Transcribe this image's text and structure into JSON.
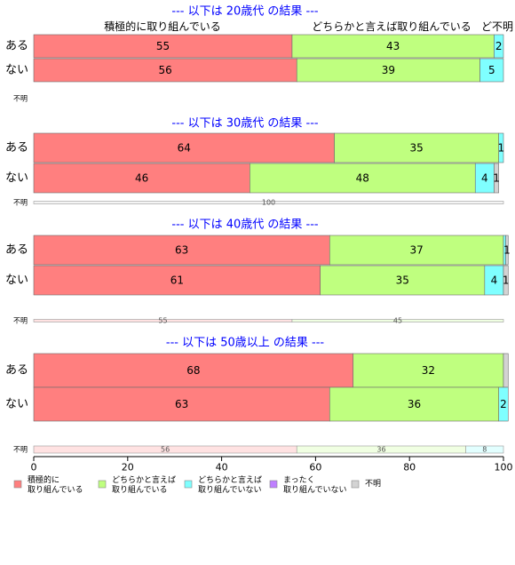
{
  "chart_data": {
    "type": "bar",
    "orientation": "horizontal",
    "stacked": true,
    "xlim": [
      0,
      100
    ],
    "x_ticks": [
      "0",
      "20",
      "40",
      "60",
      "80",
      "100"
    ],
    "legend": {
      "placement": "bottom",
      "entries": [
        {
          "label": "積極的に\n取り組んでいる",
          "color": "#ff7f7f"
        },
        {
          "label": "どちらかと言えば\n取り組んでいる",
          "color": "#bfff7f"
        },
        {
          "label": "どちらかと言えば\n取り組んでいない",
          "color": "#7fffff"
        },
        {
          "label": "まったく\n取り組んでいない",
          "color": "#bf7fff"
        },
        {
          "label": "不明",
          "color": "#d3d3d3"
        }
      ]
    },
    "header_labels": [
      "積極的に取り組んでいる",
      "どちらかと言えば取り組んでいる",
      "ど不明"
    ],
    "panels": [
      {
        "title": "--- 以下は 20歳代 の結果 ---",
        "bars": [
          {
            "category": "ある",
            "values": [
              55,
              43,
              2,
              0,
              0
            ],
            "labels": [
              "55",
              "43",
              "2",
              "",
              ""
            ]
          },
          {
            "category": "ない",
            "values": [
              56,
              39,
              5,
              0,
              0
            ],
            "labels": [
              "56",
              "39",
              "5",
              "",
              ""
            ]
          }
        ],
        "unknown": {
          "label": "不明",
          "values": [
            0,
            0,
            0,
            0,
            0
          ],
          "labels": [
            "",
            "",
            "",
            "",
            ""
          ]
        }
      },
      {
        "title": "--- 以下は 30歳代 の結果 ---",
        "bars": [
          {
            "category": "ある",
            "values": [
              64,
              35,
              1,
              0,
              0
            ],
            "labels": [
              "64",
              "35",
              "1",
              "",
              ""
            ]
          },
          {
            "category": "ない",
            "values": [
              46,
              48,
              4,
              0,
              1
            ],
            "labels": [
              "46",
              "48",
              "4",
              "",
              "1"
            ]
          }
        ],
        "unknown": {
          "label": "不明",
          "values": [
            0,
            0,
            0,
            0,
            100
          ],
          "labels": [
            "",
            "",
            "",
            "",
            "100"
          ]
        }
      },
      {
        "title": "--- 以下は 40歳代 の結果 ---",
        "bars": [
          {
            "category": "ある",
            "values": [
              63,
              37,
              0.5,
              0,
              0.5
            ],
            "labels": [
              "63",
              "37",
              "",
              "",
              "1"
            ]
          },
          {
            "category": "ない",
            "values": [
              61,
              35,
              4,
              0,
              1
            ],
            "labels": [
              "61",
              "35",
              "4",
              "",
              "1"
            ]
          }
        ],
        "unknown": {
          "label": "不明",
          "values": [
            55,
            45,
            0,
            0,
            0
          ],
          "labels": [
            "55",
            "45",
            "",
            "",
            ""
          ]
        }
      },
      {
        "title": "--- 以下は 50歳以上 の結果 ---",
        "bars": [
          {
            "category": "ある",
            "values": [
              68,
              32,
              0,
              0,
              1
            ],
            "labels": [
              "68",
              "32",
              "",
              "",
              ""
            ]
          },
          {
            "category": "ない",
            "values": [
              63,
              36,
              2,
              0,
              0
            ],
            "labels": [
              "63",
              "36",
              "2",
              "",
              ""
            ]
          }
        ],
        "unknown": {
          "label": "不明",
          "values": [
            56,
            36,
            8,
            0,
            0
          ],
          "labels": [
            "56",
            "36",
            "8",
            "",
            ""
          ]
        }
      }
    ]
  }
}
